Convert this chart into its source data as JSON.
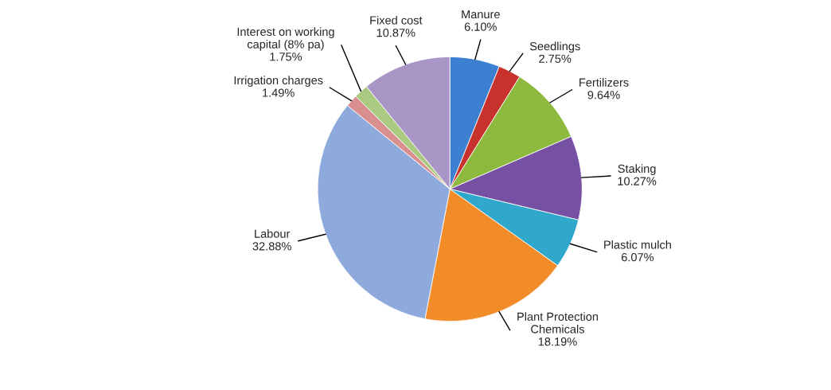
{
  "chart_data": {
    "type": "pie",
    "categories": [
      "Manure",
      "Seedlings",
      "Fertilizers",
      "Staking",
      "Plastic mulch",
      "Plant Protection\nChemicals",
      "Labour",
      "Irrigation charges",
      "Interest on working\ncapital (8% pa)",
      "Fixed cost"
    ],
    "values": [
      6.1,
      2.75,
      9.64,
      10.27,
      6.07,
      18.19,
      32.88,
      1.49,
      1.75,
      10.87
    ],
    "colors": [
      "#3d7fd0",
      "#c8322c",
      "#8dba3e",
      "#7650a3",
      "#2fa8cc",
      "#f28c28",
      "#8eaadc",
      "#d88f8d",
      "#a9ca80",
      "#a996c6"
    ],
    "value_labels": [
      "6.10%",
      "2.75%",
      "9.64%",
      "10.27%",
      "6.07%",
      "18.19%",
      "32.88%",
      "1.49%",
      "1.75%",
      "10.87%"
    ]
  }
}
